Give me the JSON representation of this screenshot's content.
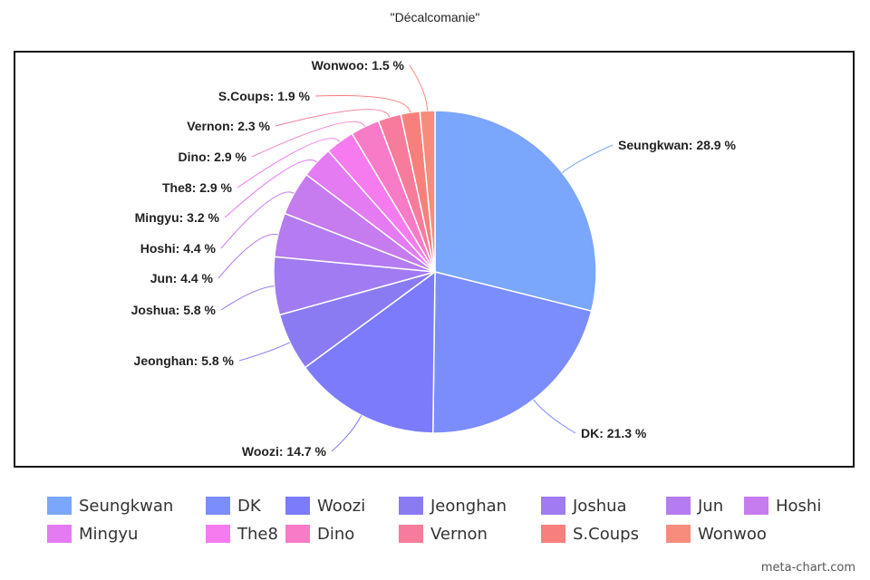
{
  "chart_data": {
    "type": "pie",
    "title": "\"Décalcomanie\"",
    "categories": [
      "Seungkwan",
      "DK",
      "Woozi",
      "Jeonghan",
      "Joshua",
      "Jun",
      "Hoshi",
      "Mingyu",
      "The8",
      "Dino",
      "Vernon",
      "S.Coups",
      "Wonwoo"
    ],
    "values": [
      28.9,
      21.3,
      14.7,
      5.8,
      5.8,
      4.4,
      4.4,
      3.2,
      2.9,
      2.9,
      2.3,
      1.9,
      1.5
    ],
    "value_labels": [
      "Seungkwan: 28.9 %",
      "DK: 21.3 %",
      "Woozi: 14.7 %",
      "Jeonghan: 5.8 %",
      "Joshua: 5.8 %",
      "Jun: 4.4 %",
      "Hoshi: 4.4 %",
      "Mingyu: 3.2 %",
      "The8: 2.9 %",
      "Dino: 2.9 %",
      "Vernon: 2.3 %",
      "S.Coups: 1.9 %",
      "Wonwoo: 1.5 %"
    ],
    "colors": [
      "#7aa6fb",
      "#7b8cfb",
      "#7b7bfb",
      "#8b7bf3",
      "#a07bf2",
      "#b57bf1",
      "#c67bef",
      "#e47bf3",
      "#f57bef",
      "#f77bc6",
      "#f77b9b",
      "#f7807c",
      "#f78c7c"
    ],
    "legend_position": "bottom"
  },
  "watermark": "meta-chart.com"
}
